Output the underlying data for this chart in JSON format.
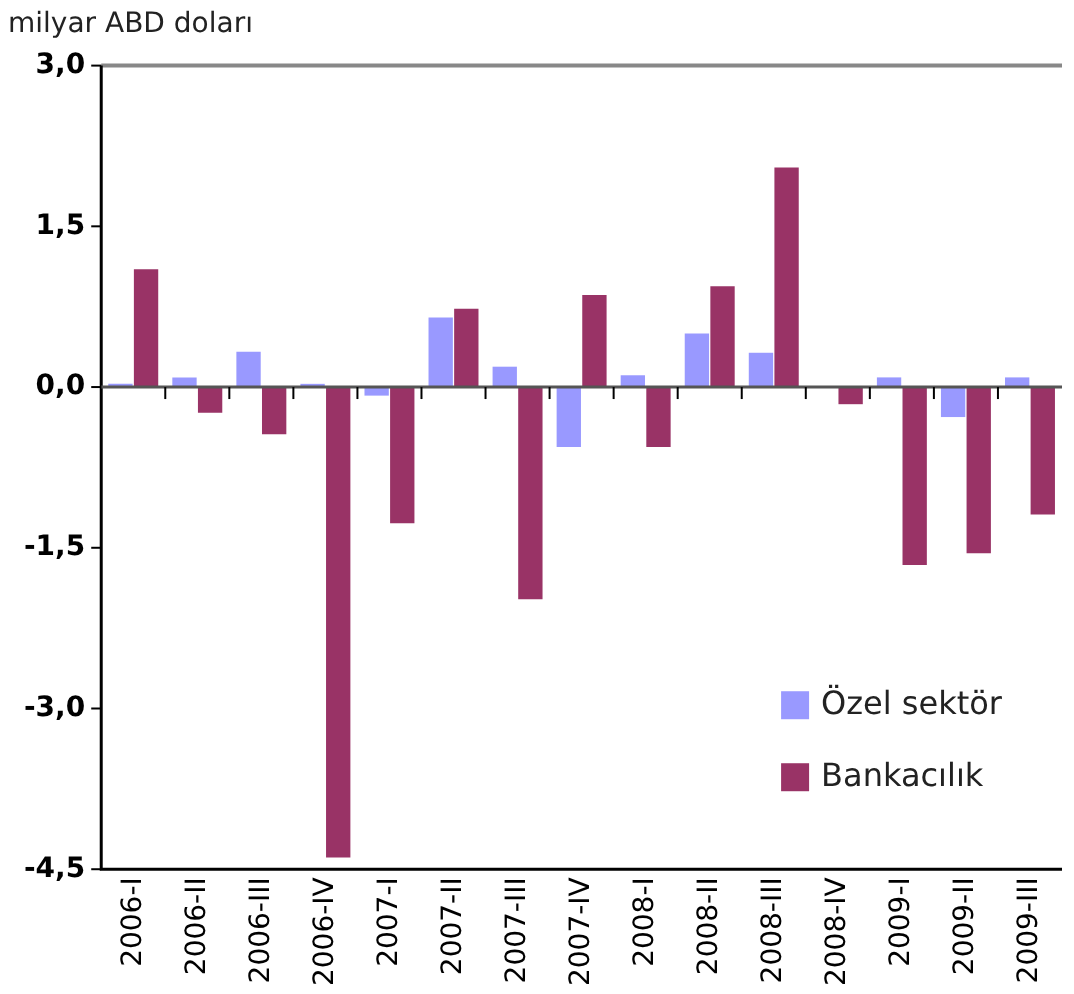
{
  "chart_data": {
    "type": "bar",
    "ylabel": "milyar ABD doları",
    "categories": [
      "2006-I",
      "2006-II",
      "2006-III",
      "2006-IV",
      "2007-I",
      "2007-II",
      "2007-III",
      "2007-IV",
      "2008-I",
      "2008-II",
      "2008-III",
      "2008-IV",
      "2009-I",
      "2009-II",
      "2009-III"
    ],
    "series": [
      {
        "name": "Özel sektör",
        "color": "#9999ff",
        "values": [
          0.03,
          0.09,
          0.33,
          0.03,
          -0.08,
          0.65,
          0.19,
          -0.56,
          0.11,
          0.5,
          0.32,
          0,
          0.09,
          -0.28,
          0.09
        ]
      },
      {
        "name": "Bankacılık",
        "color": "#993366",
        "values": [
          1.1,
          -0.24,
          -0.44,
          -4.39,
          -1.27,
          0.73,
          -1.98,
          0.86,
          -0.56,
          0.94,
          2.05,
          -0.16,
          -1.66,
          -1.55,
          -1.19
        ]
      }
    ],
    "ylim": [
      -4.5,
      3
    ],
    "yticks": [
      {
        "value": -4.5,
        "label": "-4,5"
      },
      {
        "value": -3,
        "label": "-3,0"
      },
      {
        "value": -1.5,
        "label": "-1,5"
      },
      {
        "value": 0,
        "label": "0,0"
      },
      {
        "value": 1.5,
        "label": "1,5"
      },
      {
        "value": 3,
        "label": "3,0"
      }
    ],
    "legend": "bottom right"
  }
}
